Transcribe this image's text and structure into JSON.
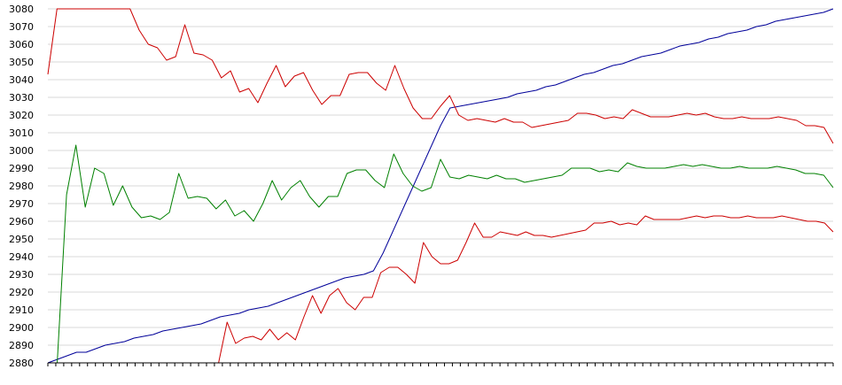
{
  "chart_data": {
    "type": "line",
    "title": "",
    "xlabel": "",
    "ylabel": "",
    "ylim": [
      2880,
      3080
    ],
    "yticks": [
      2880,
      2890,
      2900,
      2910,
      2920,
      2930,
      2940,
      2950,
      2960,
      2970,
      2980,
      2990,
      3000,
      3010,
      3020,
      3030,
      3040,
      3050,
      3060,
      3070,
      3080
    ],
    "x_count": 100,
    "horizontal_grid": true,
    "vertical_grid": false,
    "legend": "none",
    "series": [
      {
        "color": "#000099",
        "values": [
          2880,
          2882,
          2884,
          2886,
          2886,
          2888,
          2890,
          2891,
          2892,
          2894,
          2895,
          2896,
          2898,
          2899,
          2900,
          2901,
          2902,
          2904,
          2906,
          2907,
          2908,
          2910,
          2911,
          2912,
          2914,
          2916,
          2918,
          2920,
          2922,
          2924,
          2926,
          2928,
          2929,
          2930,
          2932,
          2942,
          2954,
          2966,
          2978,
          2990,
          3002,
          3014,
          3024,
          3025,
          3026,
          3027,
          3028,
          3029,
          3030,
          3032,
          3033,
          3034,
          3036,
          3037,
          3039,
          3041,
          3043,
          3044,
          3046,
          3048,
          3049,
          3051,
          3053,
          3054,
          3055,
          3057,
          3059,
          3060,
          3061,
          3063,
          3064,
          3066,
          3067,
          3068,
          3070,
          3071,
          3073,
          3074,
          3075,
          3076,
          3077,
          3078,
          3080
        ]
      },
      {
        "color": "#cc0000",
        "values": [
          3043,
          3080,
          3080,
          3080,
          3080,
          3080,
          3080,
          3080,
          3080,
          3080,
          3068,
          3060,
          3058,
          3051,
          3053,
          3071,
          3055,
          3054,
          3051,
          3041,
          3045,
          3033,
          3035,
          3027,
          3038,
          3048,
          3036,
          3042,
          3044,
          3034,
          3026,
          3031,
          3031,
          3043,
          3044,
          3044,
          3038,
          3034,
          3048,
          3035,
          3024,
          3018,
          3018,
          3025,
          3031,
          3020,
          3017,
          3018,
          3017,
          3016,
          3018,
          3016,
          3016,
          3013,
          3014,
          3015,
          3016,
          3017,
          3021,
          3021,
          3020,
          3018,
          3019,
          3018,
          3023,
          3021,
          3019,
          3019,
          3019,
          3020,
          3021,
          3020,
          3021,
          3019,
          3018,
          3018,
          3019,
          3018,
          3018,
          3018,
          3019,
          3018,
          3017,
          3014,
          3014,
          3013,
          3004
        ]
      },
      {
        "color": "#008000",
        "values": [
          2880,
          2880,
          2975,
          3003,
          2968,
          2990,
          2987,
          2969,
          2980,
          2968,
          2962,
          2963,
          2961,
          2965,
          2987,
          2973,
          2974,
          2973,
          2967,
          2972,
          2963,
          2966,
          2960,
          2970,
          2983,
          2972,
          2979,
          2983,
          2974,
          2968,
          2974,
          2974,
          2987,
          2989,
          2989,
          2983,
          2979,
          2998,
          2987,
          2980,
          2977,
          2979,
          2995,
          2985,
          2984,
          2986,
          2985,
          2984,
          2986,
          2984,
          2984,
          2982,
          2983,
          2984,
          2985,
          2986,
          2990,
          2990,
          2990,
          2988,
          2989,
          2988,
          2993,
          2991,
          2990,
          2990,
          2990,
          2991,
          2992,
          2991,
          2992,
          2991,
          2990,
          2990,
          2991,
          2990,
          2990,
          2990,
          2991,
          2990,
          2989,
          2987,
          2987,
          2986,
          2979
        ]
      },
      {
        "color": "#cc0000",
        "values": [
          2880,
          2880,
          2880,
          2880,
          2880,
          2880,
          2880,
          2880,
          2880,
          2880,
          2880,
          2880,
          2880,
          2880,
          2880,
          2880,
          2880,
          2880,
          2880,
          2880,
          2880,
          2903,
          2891,
          2894,
          2895,
          2893,
          2899,
          2893,
          2897,
          2893,
          2906,
          2918,
          2908,
          2918,
          2922,
          2914,
          2910,
          2917,
          2917,
          2931,
          2934,
          2934,
          2930,
          2925,
          2948,
          2940,
          2936,
          2936,
          2938,
          2948,
          2959,
          2951,
          2951,
          2954,
          2953,
          2952,
          2954,
          2952,
          2952,
          2951,
          2952,
          2953,
          2954,
          2955,
          2959,
          2959,
          2960,
          2958,
          2959,
          2958,
          2963,
          2961,
          2961,
          2961,
          2961,
          2962,
          2963,
          2962,
          2963,
          2963,
          2962,
          2962,
          2963,
          2962,
          2962,
          2962,
          2963,
          2962,
          2961,
          2960,
          2960,
          2959,
          2954
        ]
      }
    ]
  }
}
